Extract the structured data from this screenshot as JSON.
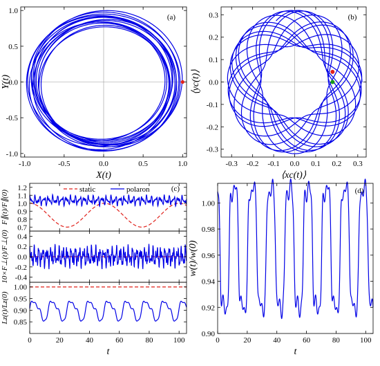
{
  "chart_data": [
    {
      "panel": "a",
      "type": "line",
      "panel_label": "(a)",
      "xlabel": "X(t)",
      "ylabel": "Y(t)",
      "xlim": [
        -1.05,
        1.05
      ],
      "ylim": [
        -1.05,
        1.05
      ],
      "xticks": [
        "-1.0",
        "-0.5",
        "0.0",
        "0.5",
        "1.0"
      ],
      "yticks": [
        "-1.0",
        "-0.5",
        "0.0",
        "0.5",
        "1.0"
      ],
      "series": [
        {
          "color": "#0000e6",
          "description_values": {
            "mean_radius": 0.9,
            "radius_min": 0.77,
            "radius_max": 1.0
          }
        }
      ],
      "markers": [
        {
          "x": 1.0,
          "y": 0.0,
          "color": "#e0201a"
        }
      ]
    },
    {
      "panel": "b",
      "type": "line",
      "panel_label": "(b)",
      "xlabel": "⟨xc(t)⟩",
      "ylabel": "⟨yc(t)⟩",
      "xlim": [
        -0.35,
        0.34
      ],
      "ylim": [
        -0.335,
        0.335
      ],
      "xticks": [
        "-0.3",
        "-0.2",
        "-0.1",
        "0.0",
        "0.1",
        "0.2",
        "0.3"
      ],
      "yticks": [
        "-0.3",
        "-0.2",
        "-0.1",
        "0.0",
        "0.1",
        "0.2",
        "0.3"
      ],
      "series": [
        {
          "color": "#0000e6",
          "description_values": {
            "radius_min": 0.15,
            "radius_max": 0.32
          }
        }
      ],
      "markers": [
        {
          "x": 0.18,
          "y": 0.045,
          "color": "#e0201a"
        },
        {
          "x": 0.18,
          "y": 0.0,
          "color": "#1a9a1a"
        }
      ]
    },
    {
      "panel": "c1",
      "type": "line",
      "panel_label": "(c)",
      "ylabel": "F∥(t)/F∥(0)",
      "xlim": [
        0,
        105
      ],
      "ylim": [
        0.65,
        1.25
      ],
      "yticks": [
        "0.7",
        "0.8",
        "0.9",
        "1.0",
        "1.1",
        "1.2"
      ],
      "legend": [
        "static",
        "polaron"
      ],
      "legend_position": "top",
      "series": [
        {
          "name": "static",
          "color": "#e0201a",
          "style": "dashed",
          "description_values": {
            "period": 50,
            "min": 0.7,
            "max": 1.0
          }
        },
        {
          "name": "polaron",
          "color": "#0000e6",
          "style": "solid",
          "description_values": {
            "mean": 1.04,
            "min": 0.96,
            "max": 1.1
          }
        }
      ]
    },
    {
      "panel": "c2",
      "type": "line",
      "ylabel": "10×F⊥(t)/F⊥(0)",
      "xlim": [
        0,
        105
      ],
      "ylim": [
        -0.5,
        0.5
      ],
      "yticks": [
        "-0.4",
        "-0.2",
        "0.0",
        "0.2",
        "0.4"
      ],
      "series": [
        {
          "name": "static",
          "color": "#e0201a",
          "style": "dashed",
          "description_values": {
            "value": 0.0
          }
        },
        {
          "name": "polaron",
          "color": "#0000e6",
          "style": "solid",
          "description_values": {
            "min": -0.3,
            "max": 0.25
          }
        }
      ]
    },
    {
      "panel": "c3",
      "type": "line",
      "ylabel": "Lz(t)/Lz(0)",
      "xlabel": "t",
      "xlim": [
        0,
        105
      ],
      "ylim": [
        0.8,
        1.02
      ],
      "xticks": [
        "0",
        "20",
        "40",
        "60",
        "80",
        "100"
      ],
      "yticks": [
        "0.85",
        "0.90",
        "0.95",
        "1.00"
      ],
      "series": [
        {
          "name": "static",
          "color": "#e0201a",
          "style": "dashed",
          "description_values": {
            "value": 1.0
          }
        },
        {
          "name": "polaron",
          "color": "#0000e6",
          "style": "solid",
          "description_values": {
            "period": 12.5,
            "min": 0.85,
            "max": 0.945
          }
        }
      ]
    },
    {
      "panel": "d",
      "type": "line",
      "panel_label": "(d)",
      "xlabel": "t",
      "ylabel": "w(t)/w(0)",
      "xlim": [
        0,
        105
      ],
      "ylim": [
        0.9,
        1.015
      ],
      "xticks": [
        "0",
        "20",
        "40",
        "60",
        "80",
        "100"
      ],
      "yticks": [
        "0.90",
        "0.92",
        "0.94",
        "0.96",
        "0.98",
        "1.00"
      ],
      "series": [
        {
          "color": "#0000e6",
          "style": "solid",
          "description_values": {
            "period": 12.5,
            "min": 0.92,
            "max": 1.01
          }
        }
      ]
    }
  ]
}
